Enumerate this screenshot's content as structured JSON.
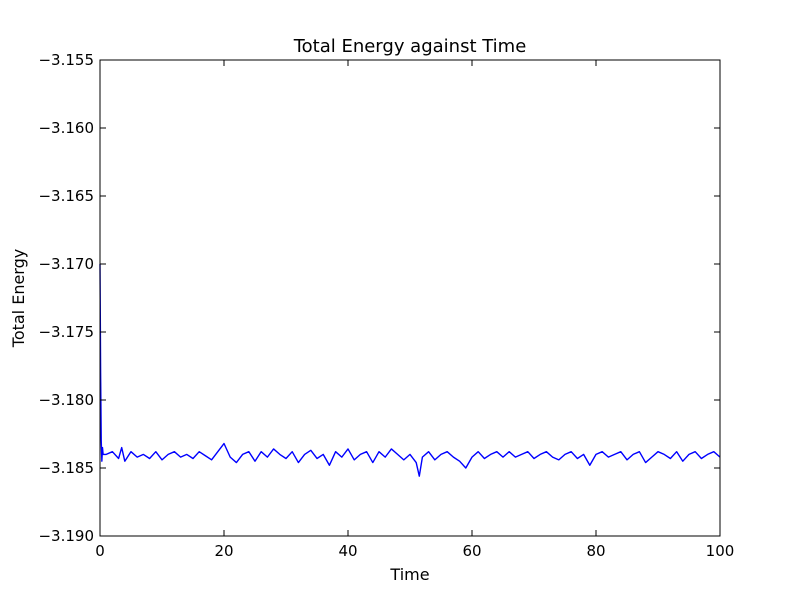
{
  "chart_data": {
    "type": "line",
    "title": "Total Energy against Time",
    "xlabel": "Time",
    "ylabel": "Total Energy",
    "xlim": [
      0,
      100
    ],
    "ylim": [
      -3.19,
      -3.155
    ],
    "xticks": [
      0,
      20,
      40,
      60,
      80,
      100
    ],
    "xtick_labels": [
      "0",
      "20",
      "40",
      "60",
      "80",
      "100"
    ],
    "yticks": [
      -3.155,
      -3.16,
      -3.165,
      -3.17,
      -3.175,
      -3.18,
      -3.185,
      -3.19
    ],
    "ytick_labels": [
      "−3.155",
      "−3.160",
      "−3.165",
      "−3.170",
      "−3.175",
      "−3.180",
      "−3.185",
      "−3.190"
    ],
    "grid": false,
    "series": [
      {
        "color": "#0000ff",
        "x": [
          0,
          0.1,
          0.2,
          0.3,
          0.4,
          0.5,
          1,
          2,
          3,
          3.5,
          4,
          5,
          6,
          7,
          8,
          9,
          10,
          11,
          12,
          13,
          14,
          15,
          16,
          17,
          18,
          19,
          20,
          21,
          22,
          23,
          24,
          25,
          26,
          27,
          28,
          29,
          30,
          31,
          32,
          33,
          34,
          35,
          36,
          37,
          38,
          39,
          40,
          41,
          42,
          43,
          44,
          45,
          46,
          47,
          48,
          49,
          50,
          51,
          51.5,
          52,
          53,
          54,
          55,
          56,
          57,
          58,
          59,
          60,
          61,
          62,
          63,
          64,
          65,
          66,
          67,
          68,
          69,
          70,
          71,
          72,
          73,
          74,
          75,
          76,
          77,
          78,
          79,
          80,
          81,
          82,
          83,
          84,
          85,
          86,
          87,
          88,
          89,
          90,
          91,
          92,
          93,
          94,
          95,
          96,
          97,
          98,
          99,
          100
        ],
        "values": [
          -3.17,
          -3.178,
          -3.183,
          -3.1845,
          -3.1835,
          -3.184,
          -3.184,
          -3.1838,
          -3.1843,
          -3.1835,
          -3.1845,
          -3.1838,
          -3.1842,
          -3.184,
          -3.1843,
          -3.1838,
          -3.1844,
          -3.184,
          -3.1838,
          -3.1842,
          -3.184,
          -3.1843,
          -3.1838,
          -3.1841,
          -3.1844,
          -3.1838,
          -3.1832,
          -3.1842,
          -3.1846,
          -3.184,
          -3.1838,
          -3.1845,
          -3.1838,
          -3.1842,
          -3.1836,
          -3.184,
          -3.1843,
          -3.1838,
          -3.1846,
          -3.184,
          -3.1837,
          -3.1843,
          -3.184,
          -3.1848,
          -3.1838,
          -3.1842,
          -3.1836,
          -3.1844,
          -3.184,
          -3.1838,
          -3.1846,
          -3.1838,
          -3.1842,
          -3.1836,
          -3.184,
          -3.1844,
          -3.184,
          -3.1846,
          -3.1856,
          -3.1842,
          -3.1838,
          -3.1844,
          -3.184,
          -3.1838,
          -3.1842,
          -3.1845,
          -3.185,
          -3.1842,
          -3.1838,
          -3.1843,
          -3.184,
          -3.1838,
          -3.1842,
          -3.1838,
          -3.1842,
          -3.184,
          -3.1838,
          -3.1843,
          -3.184,
          -3.1838,
          -3.1842,
          -3.1844,
          -3.184,
          -3.1838,
          -3.1843,
          -3.184,
          -3.1848,
          -3.184,
          -3.1838,
          -3.1842,
          -3.184,
          -3.1838,
          -3.1844,
          -3.184,
          -3.1838,
          -3.1846,
          -3.1842,
          -3.1838,
          -3.184,
          -3.1843,
          -3.1838,
          -3.1845,
          -3.184,
          -3.1838,
          -3.1843,
          -3.184,
          -3.1838,
          -3.1842
        ]
      }
    ]
  }
}
